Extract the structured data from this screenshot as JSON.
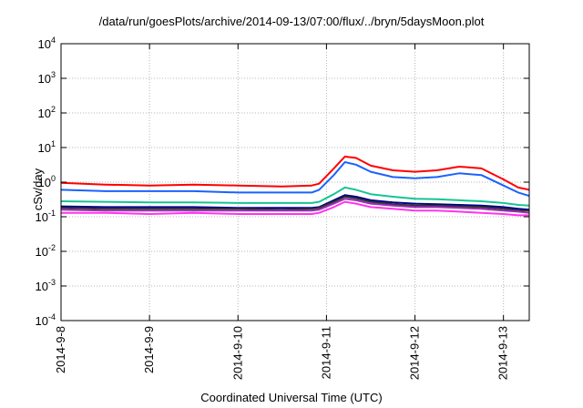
{
  "chart_data": {
    "type": "line",
    "title": "/data/run/goesPlots/archive/2014-09-13/07:00/flux/../bryn/5daysMoon.plot",
    "xlabel": "Coordinated Universal Time (UTC)",
    "ylabel": "cSv/day",
    "y_scale": "log",
    "ylim": [
      0.0001,
      10000
    ],
    "xlim": [
      "2014-09-08",
      "2014-09-13T07:00"
    ],
    "grid": true,
    "y_ticks": [
      {
        "value": 0.0001,
        "base": "10",
        "exp": "-4"
      },
      {
        "value": 0.001,
        "base": "10",
        "exp": "-3"
      },
      {
        "value": 0.01,
        "base": "10",
        "exp": "-2"
      },
      {
        "value": 0.1,
        "base": "10",
        "exp": "-1"
      },
      {
        "value": 1,
        "base": "10",
        "exp": "0"
      },
      {
        "value": 10,
        "base": "10",
        "exp": "1"
      },
      {
        "value": 100,
        "base": "10",
        "exp": "2"
      },
      {
        "value": 1000,
        "base": "10",
        "exp": "3"
      },
      {
        "value": 10000,
        "base": "10",
        "exp": "4"
      }
    ],
    "x_ticks": [
      "2014-9-8",
      "2014-9-9",
      "2014-9-10",
      "2014-9-11",
      "2014-9-12",
      "2014-9-13"
    ],
    "x": [
      "2014-09-08T00:00",
      "2014-09-08T12:00",
      "2014-09-09T00:00",
      "2014-09-09T12:00",
      "2014-09-10T00:00",
      "2014-09-10T12:00",
      "2014-09-10T20:00",
      "2014-09-10T22:00",
      "2014-09-11T02:00",
      "2014-09-11T05:00",
      "2014-09-11T08:00",
      "2014-09-11T12:00",
      "2014-09-11T18:00",
      "2014-09-12T00:00",
      "2014-09-12T06:00",
      "2014-09-12T12:00",
      "2014-09-12T18:00",
      "2014-09-13T00:00",
      "2014-09-13T04:00",
      "2014-09-13T07:00"
    ],
    "series": [
      {
        "color": "#ff0000",
        "values": [
          0.95,
          0.85,
          0.8,
          0.85,
          0.8,
          0.75,
          0.8,
          0.9,
          2.5,
          5.5,
          5.0,
          3.0,
          2.2,
          2.0,
          2.2,
          2.8,
          2.5,
          1.2,
          0.7,
          0.6
        ]
      },
      {
        "color": "#1a62ff",
        "values": [
          0.6,
          0.55,
          0.55,
          0.55,
          0.5,
          0.5,
          0.5,
          0.6,
          1.6,
          3.8,
          3.2,
          2.0,
          1.4,
          1.3,
          1.4,
          1.8,
          1.6,
          0.8,
          0.5,
          0.4
        ]
      },
      {
        "color": "#17c494",
        "values": [
          0.28,
          0.27,
          0.26,
          0.26,
          0.25,
          0.25,
          0.25,
          0.27,
          0.45,
          0.7,
          0.6,
          0.45,
          0.38,
          0.33,
          0.32,
          0.3,
          0.28,
          0.25,
          0.22,
          0.21
        ]
      },
      {
        "color": "#00008b",
        "values": [
          0.2,
          0.19,
          0.19,
          0.19,
          0.18,
          0.18,
          0.18,
          0.19,
          0.3,
          0.42,
          0.38,
          0.3,
          0.26,
          0.24,
          0.23,
          0.22,
          0.21,
          0.19,
          0.17,
          0.16
        ]
      },
      {
        "color": "#333333",
        "values": [
          0.18,
          0.17,
          0.17,
          0.17,
          0.17,
          0.16,
          0.17,
          0.18,
          0.27,
          0.38,
          0.34,
          0.27,
          0.23,
          0.21,
          0.21,
          0.2,
          0.19,
          0.17,
          0.15,
          0.15
        ]
      },
      {
        "color": "#9b2fb4",
        "values": [
          0.16,
          0.15,
          0.15,
          0.15,
          0.15,
          0.15,
          0.15,
          0.16,
          0.24,
          0.33,
          0.3,
          0.24,
          0.21,
          0.19,
          0.19,
          0.18,
          0.17,
          0.15,
          0.14,
          0.13
        ]
      },
      {
        "color": "#ff33ee",
        "values": [
          0.13,
          0.13,
          0.12,
          0.13,
          0.12,
          0.12,
          0.12,
          0.13,
          0.19,
          0.27,
          0.24,
          0.19,
          0.17,
          0.15,
          0.15,
          0.14,
          0.13,
          0.12,
          0.11,
          0.11
        ]
      }
    ]
  }
}
